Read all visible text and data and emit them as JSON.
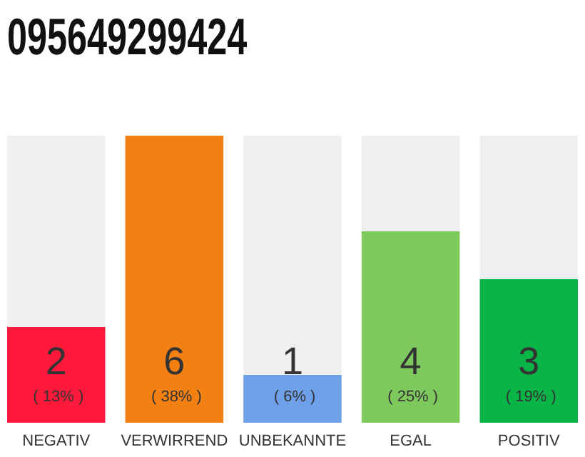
{
  "chart_data": {
    "type": "bar",
    "title": "095649299424",
    "categories": [
      "NEGATIV",
      "VERWIRREND",
      "UNBEKANNTE",
      "EGAL",
      "POSITIV"
    ],
    "values": [
      2,
      6,
      1,
      4,
      3
    ],
    "colors": [
      "#ff1a3c",
      "#f38012",
      "#6fa0ea",
      "#7dc95e",
      "#0ab548"
    ],
    "value_labels": [
      "2 ( 13% )",
      "6 ( 38% )",
      "1 ( 6% )",
      "4 ( 25% )",
      "3 ( 19% )"
    ]
  }
}
